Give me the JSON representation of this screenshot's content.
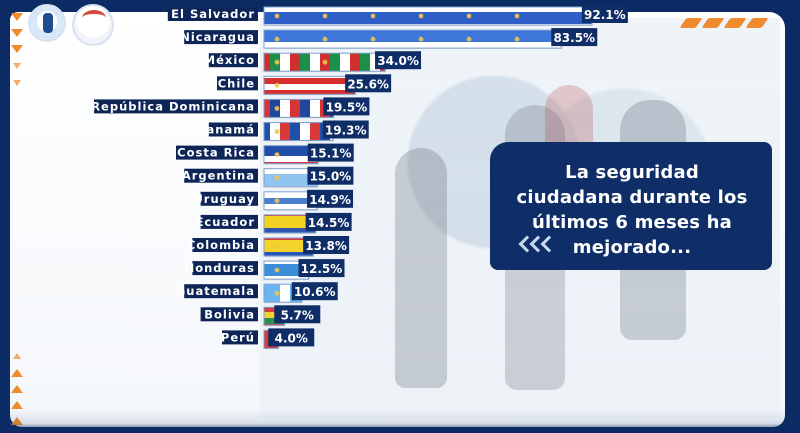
{
  "callout": {
    "text": "La seguridad ciudadana durante los últimos 6 meses ha mejorado..."
  },
  "colors": {
    "navy": "#0c2a63",
    "callout_bg": "#0f2d67",
    "orange": "#f08b2d",
    "label_bg": "#0e2558",
    "value_bg": "#0f2d67",
    "bar_border": "#7fa0cf"
  },
  "icons": {
    "left_markers": "triangle-icon",
    "callout_arrows": "double-chevron-left-icon",
    "logo_primary": "badge-logo",
    "logo_secondary": "brand-logo"
  },
  "chart_data": {
    "type": "bar",
    "categories": [
      "El Salvador",
      "Nicaragua",
      "México",
      "Chile",
      "República Dominicana",
      "Panamá",
      "Costa Rica",
      "Argentina",
      "Uruguay",
      "Ecuador",
      "Colombia",
      "Honduras",
      "Guatemala",
      "Bolivia",
      "Perú"
    ],
    "values": [
      92.1,
      83.5,
      34.0,
      25.6,
      19.5,
      19.3,
      15.1,
      15.0,
      14.9,
      14.5,
      13.8,
      12.5,
      10.6,
      5.7,
      4.0
    ],
    "value_labels": [
      "92.1%",
      "83.5%",
      "34.0%",
      "25.6%",
      "19.5%",
      "19.3%",
      "15.1%",
      "15.0%",
      "14.9%",
      "14.5%",
      "13.8%",
      "12.5%",
      "10.6%",
      "5.7%",
      "4.0%"
    ],
    "xlim": [
      0,
      100
    ],
    "grid": false,
    "legend": "none",
    "flag_styles": [
      "el-salvador",
      "nicaragua",
      "mexico",
      "chile",
      "dominican-republic",
      "panama",
      "costa-rica",
      "argentina",
      "uruguay",
      "ecuador",
      "colombia",
      "honduras",
      "guatemala",
      "bolivia",
      "peru"
    ]
  }
}
